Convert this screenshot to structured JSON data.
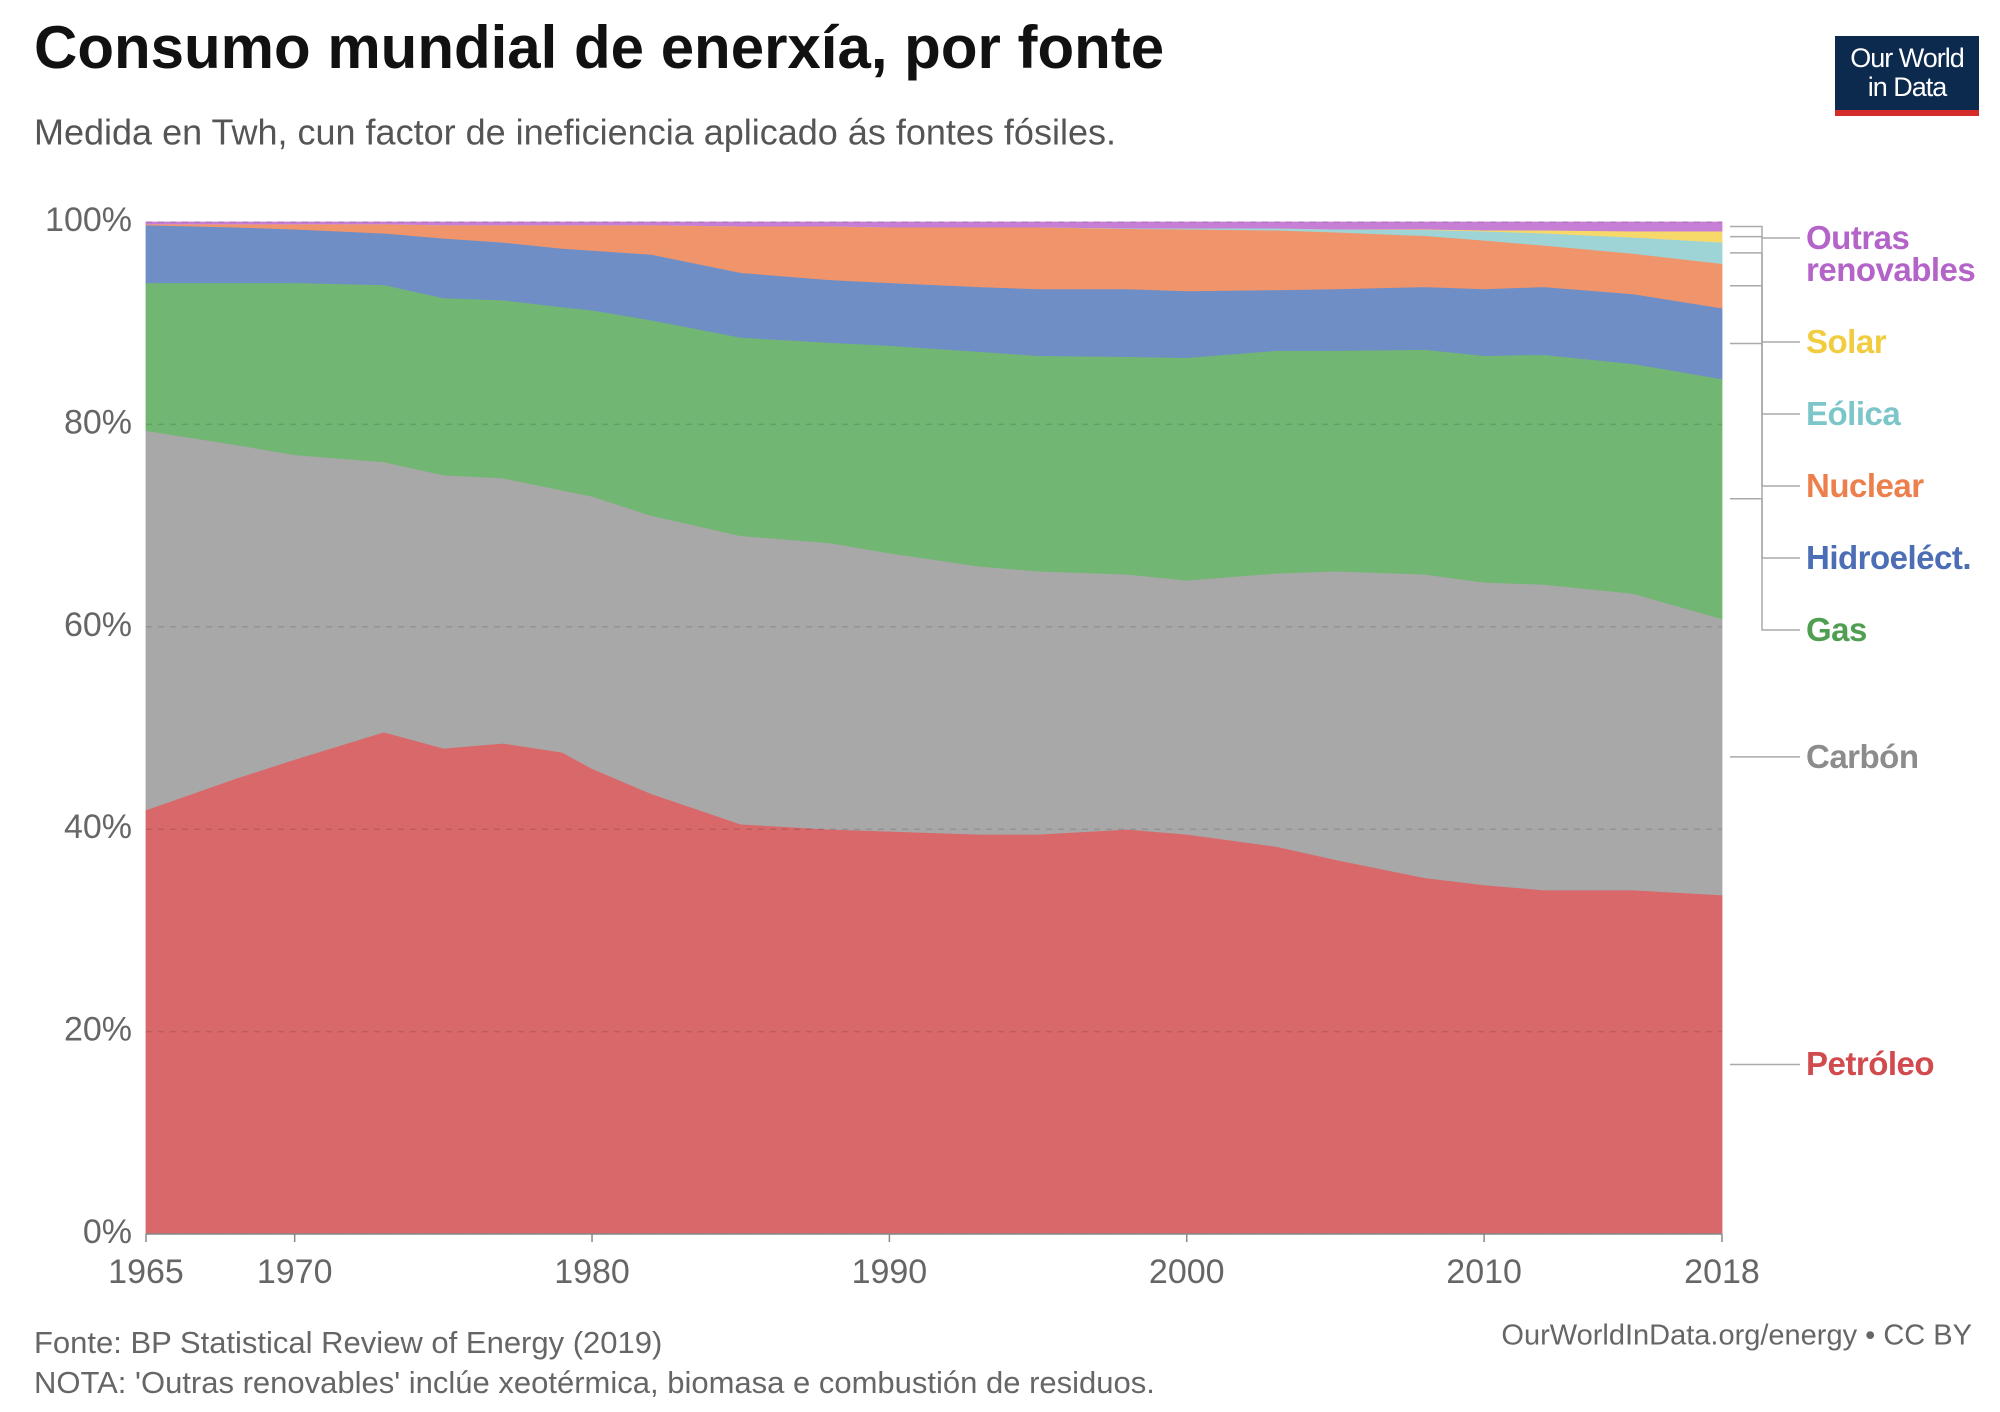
{
  "chart_data": {
    "type": "stacked-area",
    "title": "Consumo mundial de enerxía, por fonte",
    "subtitle": "Medida en Twh, cun factor de ineficiencia aplicado ás fontes fósiles.",
    "source": "Fonte: BP Statistical Review of Energy (2019)",
    "note": "NOTA: 'Outras renovables' inclúe xeotérmica, biomasa e combustión de residuos.",
    "url": "OurWorldInData.org/energy • CC BY",
    "logo": "Our World in Data",
    "x": [
      1965,
      1968,
      1970,
      1973,
      1975,
      1977,
      1979,
      1980,
      1982,
      1985,
      1988,
      1990,
      1993,
      1995,
      1998,
      2000,
      2003,
      2005,
      2008,
      2010,
      2012,
      2015,
      2018
    ],
    "xlim": [
      1965,
      2018
    ],
    "xticks": [
      1965,
      1970,
      1980,
      1990,
      2000,
      2010,
      2018
    ],
    "ylim": [
      0,
      100
    ],
    "yticks": [
      {
        "value": 0,
        "label": "0%"
      },
      {
        "value": 20,
        "label": "20%"
      },
      {
        "value": 40,
        "label": "40%"
      },
      {
        "value": 60,
        "label": "60%"
      },
      {
        "value": 80,
        "label": "80%"
      },
      {
        "value": 100,
        "label": "100%"
      }
    ],
    "grid": true,
    "series": [
      {
        "name": "Petróleo",
        "color": "#d9686a",
        "label_color": "#d04a4e",
        "values": [
          41.9,
          45,
          46.9,
          49.6,
          48,
          48.5,
          47.6,
          46,
          43.5,
          40.5,
          40,
          39.8,
          39.5,
          39.5,
          40,
          39.5,
          38.3,
          37,
          35.2,
          34.5,
          34,
          34,
          33.5
        ]
      },
      {
        "name": "Carbón",
        "color": "#a8a8a8",
        "label_color": "#8c8c8c",
        "values": [
          37.5,
          33,
          30.1,
          26.7,
          27,
          26.2,
          25.9,
          26.9,
          27.5,
          28.5,
          28.3,
          27.5,
          26.5,
          26,
          25.2,
          25.1,
          27,
          28.5,
          30,
          29.9,
          30.2,
          29.3,
          27.3
        ]
      },
      {
        "name": "Gas",
        "color": "#72b673",
        "label_color": "#4f9e51",
        "values": [
          14.6,
          16,
          17,
          17.5,
          17.5,
          17.6,
          18.1,
          18.4,
          19.3,
          19.6,
          19.8,
          20.5,
          21.2,
          21.3,
          21.5,
          22,
          22,
          21.8,
          22.2,
          22.4,
          22.7,
          22.7,
          23.7
        ]
      },
      {
        "name": "Hidroeléct.",
        "color": "#6f8ec6",
        "label_color": "#4b6eb5",
        "values": [
          5.7,
          5.5,
          5.3,
          5.1,
          5.9,
          5.7,
          5.8,
          5.9,
          6.5,
          6.4,
          6.2,
          6.2,
          6.4,
          6.6,
          6.7,
          6.6,
          6,
          6.1,
          6.2,
          6.6,
          6.7,
          6.9,
          7
        ]
      },
      {
        "name": "Nuclear",
        "color": "#f0956b",
        "label_color": "#ec7f4c",
        "values": [
          0.1,
          0.3,
          0.5,
          0.9,
          1.3,
          1.7,
          2.3,
          2.5,
          2.9,
          4.6,
          5.3,
          5.5,
          5.9,
          6.1,
          5.95,
          6.1,
          5.9,
          5.6,
          5.05,
          4.8,
          4.1,
          4.0,
          4.4
        ]
      },
      {
        "name": "Eólica",
        "color": "#9ed4d6",
        "label_color": "#7cc6c9",
        "values": [
          0,
          0,
          0,
          0,
          0,
          0,
          0,
          0,
          0,
          0,
          0,
          0,
          0,
          0,
          0.05,
          0.1,
          0.2,
          0.3,
          0.6,
          0.9,
          1.2,
          1.6,
          2.1
        ]
      },
      {
        "name": "Solar",
        "color": "#f7d96a",
        "label_color": "#f2cc40",
        "values": [
          0,
          0,
          0,
          0,
          0,
          0,
          0,
          0,
          0,
          0,
          0,
          0,
          0,
          0,
          0,
          0,
          0,
          0,
          0.05,
          0.1,
          0.3,
          0.6,
          1.1
        ]
      },
      {
        "name": "Outras renovables",
        "color": "#c77fd6",
        "label_color": "#b463c9",
        "values": [
          0.2,
          0.2,
          0.2,
          0.2,
          0.3,
          0.3,
          0.3,
          0.3,
          0.3,
          0.4,
          0.4,
          0.5,
          0.5,
          0.5,
          0.6,
          0.6,
          0.6,
          0.7,
          0.7,
          0.8,
          0.8,
          0.9,
          0.9
        ]
      }
    ]
  }
}
